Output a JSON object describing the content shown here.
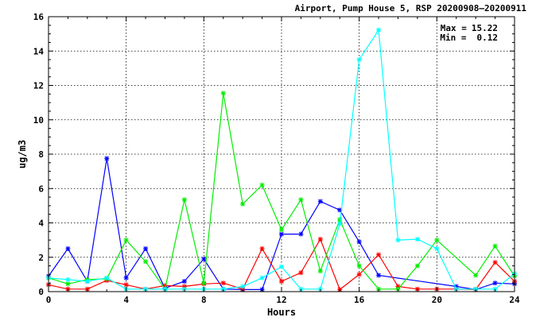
{
  "chart_data": {
    "type": "line",
    "title": "Airport, Pump House 5, RSP 20200908–20200911",
    "xlabel": "Hours",
    "ylabel": "ug/m3",
    "xlim": [
      0,
      24
    ],
    "ylim": [
      0,
      16
    ],
    "xticks": [
      0,
      4,
      8,
      12,
      16,
      20,
      24
    ],
    "yticks": [
      0,
      2,
      4,
      6,
      8,
      10,
      12,
      14,
      16
    ],
    "grid": true,
    "legend": "none",
    "stats": {
      "max_label": "Max =",
      "max_value": "15.22",
      "min_label": "Min =",
      "min_value": "0.12"
    },
    "series": [
      {
        "color": "#0000ff",
        "x": [
          0,
          1,
          2,
          3,
          4,
          5,
          6,
          7,
          8,
          9,
          10,
          11,
          12,
          13,
          14,
          15,
          16,
          17,
          21,
          22,
          23,
          24
        ],
        "y": [
          0.9,
          2.5,
          0.6,
          7.75,
          0.8,
          2.5,
          0.2,
          0.6,
          1.9,
          0.15,
          0.12,
          0.12,
          3.35,
          3.35,
          5.25,
          4.75,
          2.9,
          0.95,
          0.3,
          0.12,
          0.5,
          0.45
        ]
      },
      {
        "color": "#ff0000",
        "x": [
          0,
          1,
          2,
          3,
          4,
          5,
          6,
          7,
          8,
          9,
          10,
          11,
          12,
          13,
          14,
          15,
          16,
          17,
          18,
          19,
          20,
          21,
          22,
          23,
          24
        ],
        "y": [
          0.4,
          0.15,
          0.15,
          0.65,
          0.4,
          0.15,
          0.35,
          0.3,
          0.45,
          0.5,
          0.15,
          2.5,
          0.6,
          1.1,
          3.05,
          0.12,
          1.0,
          2.15,
          0.3,
          0.15,
          0.15,
          0.15,
          0.12,
          1.7,
          0.6
        ]
      },
      {
        "color": "#00ee00",
        "x": [
          0,
          1,
          2,
          3,
          4,
          5,
          6,
          7,
          8,
          9,
          10,
          11,
          12,
          13,
          14,
          15,
          16,
          17,
          18,
          19,
          20,
          22,
          23,
          24
        ],
        "y": [
          0.8,
          0.45,
          0.7,
          0.75,
          3.0,
          1.75,
          0.15,
          5.35,
          0.5,
          11.55,
          5.1,
          6.2,
          3.6,
          5.35,
          1.2,
          4.2,
          1.5,
          0.15,
          0.15,
          1.5,
          3.0,
          0.95,
          2.65,
          0.9
        ]
      },
      {
        "color": "#00ffff",
        "x": [
          0,
          1,
          2,
          3,
          4,
          5,
          6,
          7,
          8,
          9,
          10,
          11,
          12,
          13,
          14,
          15,
          16,
          17,
          18,
          19,
          20,
          21,
          22,
          23,
          24
        ],
        "y": [
          0.8,
          0.7,
          0.6,
          0.8,
          0.15,
          0.15,
          0.15,
          0.15,
          0.15,
          0.15,
          0.3,
          0.8,
          1.45,
          0.15,
          0.15,
          3.95,
          13.5,
          15.22,
          3.0,
          3.05,
          2.5,
          0.15,
          0.15,
          0.15,
          1.05
        ]
      }
    ]
  }
}
